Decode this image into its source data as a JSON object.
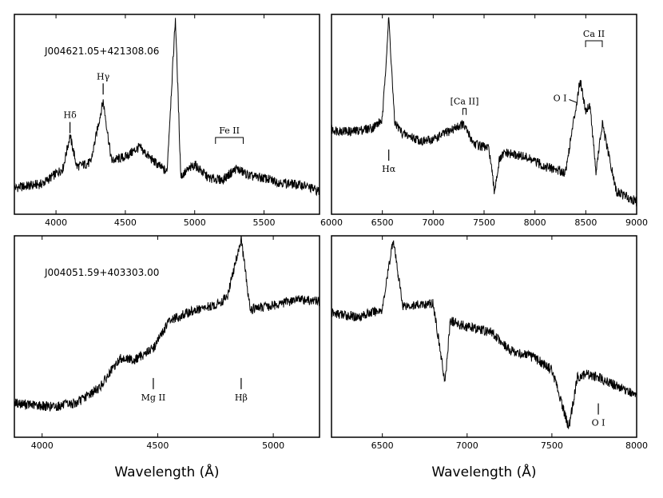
{
  "chart_data": [
    {
      "type": "line",
      "panel": "top-left",
      "object_label": "J004621.05+421308.06",
      "xlim": [
        3700,
        5900
      ],
      "xticks": [
        4000,
        4500,
        5000,
        5500
      ],
      "ylim": [
        0,
        1
      ],
      "series": [
        {
          "x": [
            3700,
            3900,
            4050,
            4101,
            4150,
            4250,
            4340,
            4400,
            4500,
            4600,
            4700,
            4800,
            4861,
            4900,
            5000,
            5100,
            5200,
            5300,
            5400,
            5500,
            5600,
            5700,
            5800,
            5900
          ],
          "y": [
            0.12,
            0.14,
            0.22,
            0.39,
            0.23,
            0.25,
            0.57,
            0.26,
            0.28,
            0.33,
            0.26,
            0.2,
            1.0,
            0.18,
            0.24,
            0.17,
            0.16,
            0.22,
            0.18,
            0.17,
            0.15,
            0.14,
            0.13,
            0.1
          ]
        }
      ],
      "annotations": [
        {
          "label": "Hδ",
          "x": 4101,
          "y": 0.46,
          "style": "tick"
        },
        {
          "label": "Hγ",
          "x": 4340,
          "y": 0.66,
          "style": "tick"
        },
        {
          "label": "Fe II",
          "x": [
            5150,
            5350
          ],
          "y": 0.38,
          "style": "bracket"
        }
      ]
    },
    {
      "type": "line",
      "panel": "top-right",
      "xlim": [
        6000,
        9000
      ],
      "xticks": [
        6000,
        6500,
        7000,
        7500,
        8000,
        8500,
        9000
      ],
      "ylim": [
        0,
        1
      ],
      "series": [
        {
          "x": [
            6000,
            6200,
            6400,
            6500,
            6563,
            6620,
            6700,
            6900,
            7000,
            7291,
            7400,
            7550,
            7600,
            7650,
            7700,
            7900,
            8100,
            8300,
            8446,
            8498,
            8542,
            8600,
            8662,
            8800,
            9000
          ],
          "y": [
            0.42,
            0.41,
            0.43,
            0.47,
            1.0,
            0.46,
            0.4,
            0.36,
            0.37,
            0.45,
            0.35,
            0.32,
            0.1,
            0.26,
            0.3,
            0.28,
            0.23,
            0.2,
            0.68,
            0.52,
            0.55,
            0.2,
            0.45,
            0.1,
            0.05
          ]
        }
      ],
      "annotations": [
        {
          "label": "Hα",
          "x": 6563,
          "y": 0.26,
          "style": "tick-below"
        },
        {
          "label": "[Ca II]",
          "x": [
            7291,
            7324
          ],
          "y": 0.53,
          "style": "bracket"
        },
        {
          "label": "O I",
          "x": 8446,
          "y": 0.56,
          "style": "side"
        },
        {
          "label": "Ca II",
          "x": [
            8498,
            8662
          ],
          "y": 0.88,
          "style": "bracket"
        }
      ]
    },
    {
      "type": "line",
      "panel": "bottom-left",
      "object_label": "J004051.59+403303.00",
      "xlim": [
        3880,
        5200
      ],
      "xticks": [
        4000,
        4500,
        5000
      ],
      "ylim": [
        0,
        1
      ],
      "series": [
        {
          "x": [
            3880,
            3950,
            4050,
            4150,
            4250,
            4340,
            4400,
            4481,
            4550,
            4650,
            4750,
            4800,
            4861,
            4900,
            5000,
            5100,
            5200
          ],
          "y": [
            0.16,
            0.15,
            0.14,
            0.16,
            0.24,
            0.39,
            0.38,
            0.44,
            0.58,
            0.63,
            0.66,
            0.7,
            1.0,
            0.64,
            0.66,
            0.69,
            0.68
          ]
        }
      ],
      "annotations": [
        {
          "label": "Mg II",
          "x": 4481,
          "y": 0.23,
          "style": "tick-below"
        },
        {
          "label": "Hβ",
          "x": 4861,
          "y": 0.23,
          "style": "tick-below"
        }
      ]
    },
    {
      "type": "line",
      "panel": "bottom-right",
      "xlim": [
        6200,
        8000
      ],
      "xticks": [
        6500,
        7000,
        7500,
        8000
      ],
      "ylim": [
        0,
        1
      ],
      "series": [
        {
          "x": [
            6200,
            6350,
            6500,
            6563,
            6620,
            6700,
            6800,
            6870,
            6900,
            7000,
            7100,
            7150,
            7250,
            7400,
            7500,
            7600,
            7650,
            7700,
            7800,
            7900,
            8000
          ],
          "y": [
            0.62,
            0.6,
            0.64,
            1.0,
            0.66,
            0.66,
            0.67,
            0.26,
            0.58,
            0.55,
            0.53,
            0.52,
            0.43,
            0.39,
            0.33,
            0.03,
            0.29,
            0.31,
            0.28,
            0.24,
            0.2
          ]
        }
      ],
      "annotations": [
        {
          "label": "O I",
          "x": 7774,
          "y": 0.1,
          "style": "tick-below"
        }
      ]
    }
  ],
  "xlabel": "Wavelength (Å)"
}
